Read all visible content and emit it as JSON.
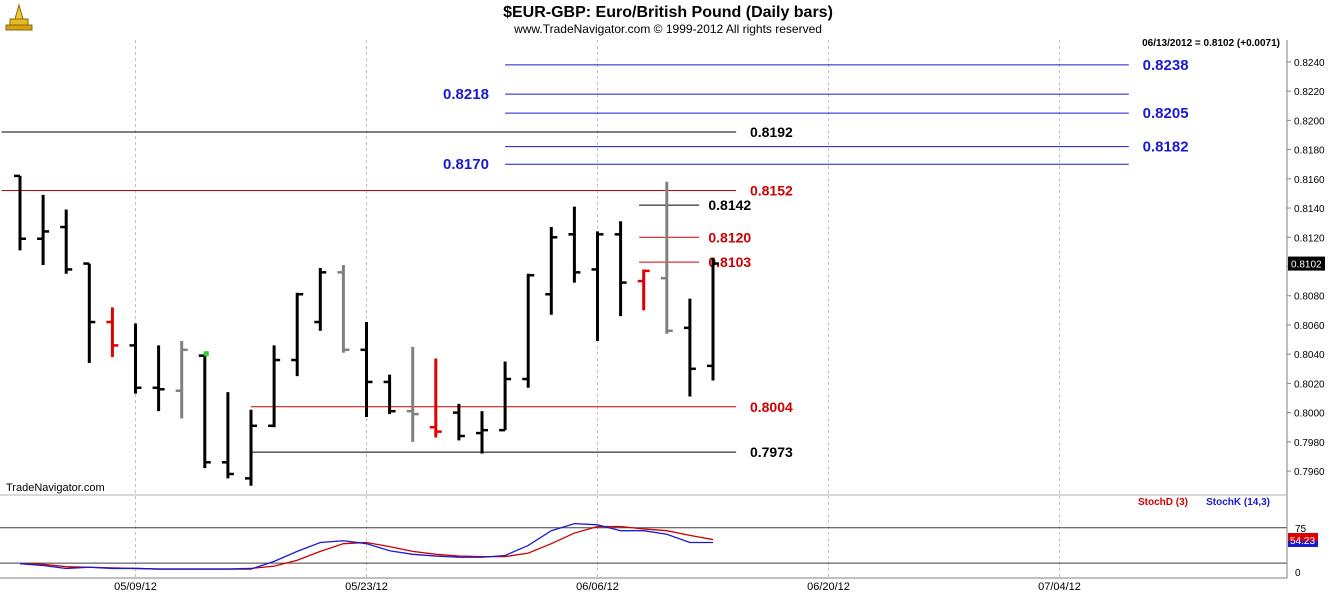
{
  "chart_data": {
    "type": "ohlc",
    "title": "$EUR-GBP:  Euro/British Pound  (Daily bars)",
    "subtitle": "www.TradeNavigator.com © 1999-2012 All rights reserved",
    "last_readout": "06/13/2012 = 0.8102 (+0.0071)",
    "watermark": "TradeNavigator.com",
    "price_axis": {
      "ylim": [
        0.7945,
        0.8255
      ],
      "ticks": [
        "0.7960",
        "0.7980",
        "0.8000",
        "0.8020",
        "0.8040",
        "0.8060",
        "0.8080",
        "0.8100",
        "0.8120",
        "0.8140",
        "0.8160",
        "0.8180",
        "0.8200",
        "0.8220",
        "0.8240"
      ],
      "last_price_label": "0.8102"
    },
    "x_axis": {
      "date_labels": [
        {
          "label": "05/09/12",
          "bar": 5
        },
        {
          "label": "05/23/12",
          "bar": 15
        },
        {
          "label": "06/06/12",
          "bar": 25
        },
        {
          "label": "06/20/12",
          "bar": 35
        },
        {
          "label": "07/04/12",
          "bar": 45
        }
      ],
      "bar_count": 55
    },
    "bars": [
      {
        "o": 0.8162,
        "h": 0.8162,
        "l": 0.8111,
        "c": 0.8119,
        "color": "black"
      },
      {
        "o": 0.8119,
        "h": 0.8149,
        "l": 0.8101,
        "c": 0.8124,
        "color": "black"
      },
      {
        "o": 0.8127,
        "h": 0.8139,
        "l": 0.8095,
        "c": 0.8098,
        "color": "black"
      },
      {
        "o": 0.8102,
        "h": 0.8102,
        "l": 0.8034,
        "c": 0.8062,
        "color": "black"
      },
      {
        "o": 0.8062,
        "h": 0.8072,
        "l": 0.8038,
        "c": 0.8046,
        "color": "red"
      },
      {
        "o": 0.8046,
        "h": 0.8061,
        "l": 0.8013,
        "c": 0.8017,
        "color": "black"
      },
      {
        "o": 0.8017,
        "h": 0.8046,
        "l": 0.8001,
        "c": 0.8016,
        "color": "black"
      },
      {
        "o": 0.8015,
        "h": 0.8049,
        "l": 0.7996,
        "c": 0.8043,
        "color": "gray"
      },
      {
        "o": 0.8039,
        "h": 0.804,
        "l": 0.7962,
        "c": 0.7966,
        "color": "black"
      },
      {
        "o": 0.7966,
        "h": 0.8014,
        "l": 0.7955,
        "c": 0.7958,
        "color": "black"
      },
      {
        "o": 0.7955,
        "h": 0.8002,
        "l": 0.795,
        "c": 0.7991,
        "color": "black"
      },
      {
        "o": 0.7991,
        "h": 0.8046,
        "l": 0.799,
        "c": 0.8036,
        "color": "black"
      },
      {
        "o": 0.8036,
        "h": 0.8082,
        "l": 0.8025,
        "c": 0.8081,
        "color": "black"
      },
      {
        "o": 0.8062,
        "h": 0.8099,
        "l": 0.8056,
        "c": 0.8096,
        "color": "black"
      },
      {
        "o": 0.8096,
        "h": 0.8101,
        "l": 0.8041,
        "c": 0.8043,
        "color": "gray"
      },
      {
        "o": 0.8043,
        "h": 0.8062,
        "l": 0.7997,
        "c": 0.8021,
        "color": "black"
      },
      {
        "o": 0.8021,
        "h": 0.8026,
        "l": 0.7999,
        "c": 0.8001,
        "color": "black"
      },
      {
        "o": 0.8001,
        "h": 0.8045,
        "l": 0.798,
        "c": 0.7999,
        "color": "gray"
      },
      {
        "o": 0.799,
        "h": 0.8037,
        "l": 0.7983,
        "c": 0.7987,
        "color": "red"
      },
      {
        "o": 0.8,
        "h": 0.8006,
        "l": 0.7981,
        "c": 0.7984,
        "color": "black"
      },
      {
        "o": 0.7986,
        "h": 0.8001,
        "l": 0.7972,
        "c": 0.7988,
        "color": "black"
      },
      {
        "o": 0.7988,
        "h": 0.8035,
        "l": 0.7988,
        "c": 0.8023,
        "color": "black"
      },
      {
        "o": 0.8023,
        "h": 0.8095,
        "l": 0.8017,
        "c": 0.8094,
        "color": "black"
      },
      {
        "o": 0.8081,
        "h": 0.8127,
        "l": 0.8067,
        "c": 0.812,
        "color": "black"
      },
      {
        "o": 0.8122,
        "h": 0.8141,
        "l": 0.8089,
        "c": 0.8096,
        "color": "black"
      },
      {
        "o": 0.8098,
        "h": 0.8124,
        "l": 0.8049,
        "c": 0.8122,
        "color": "black"
      },
      {
        "o": 0.8122,
        "h": 0.8131,
        "l": 0.8066,
        "c": 0.8089,
        "color": "black"
      },
      {
        "o": 0.809,
        "h": 0.8098,
        "l": 0.807,
        "c": 0.8097,
        "color": "red"
      },
      {
        "o": 0.8092,
        "h": 0.8158,
        "l": 0.8054,
        "c": 0.8056,
        "color": "gray"
      },
      {
        "o": 0.8058,
        "h": 0.8078,
        "l": 0.8011,
        "c": 0.803,
        "color": "black"
      },
      {
        "o": 0.8032,
        "h": 0.8106,
        "l": 0.8022,
        "c": 0.8102,
        "color": "black"
      }
    ],
    "signal_bar": {
      "bar": 8,
      "price": 0.804,
      "color": "#33cc33"
    },
    "levels": [
      {
        "label": "0.8238",
        "price": 0.8238,
        "color": "#1a1ad0",
        "from_bar": 21,
        "to_bar": 48,
        "label_bar": 48.6
      },
      {
        "label": "0.8218",
        "price": 0.8218,
        "color": "#1a1ad0",
        "from_bar": 21,
        "to_bar": 48,
        "label_side": "left",
        "label_bar": 20.3
      },
      {
        "label": "0.8205",
        "price": 0.8205,
        "color": "#1a1ad0",
        "from_bar": 21,
        "to_bar": 48,
        "label_bar": 48.6
      },
      {
        "label": "0.8192",
        "price": 0.8192,
        "color": "#000000",
        "from_bar": -0.8,
        "to_bar": 31,
        "label_bar": 31.6
      },
      {
        "label": "0.8182",
        "price": 0.8182,
        "color": "#1a1ad0",
        "from_bar": 21,
        "to_bar": 48,
        "label_bar": 48.6
      },
      {
        "label": "0.8170",
        "price": 0.817,
        "color": "#1a1ad0",
        "from_bar": 21,
        "to_bar": 48,
        "label_side": "left",
        "label_bar": 20.3
      },
      {
        "label": "0.8152",
        "price": 0.8152,
        "color": "#cc0000",
        "from_bar": -0.8,
        "to_bar": 31,
        "label_bar": 31.6
      },
      {
        "label": "0.8142",
        "price": 0.8142,
        "color": "#000000",
        "from_bar": 26.8,
        "to_bar": 29.4,
        "label_bar": 29.8
      },
      {
        "label": "0.8120",
        "price": 0.812,
        "color": "#cc0000",
        "from_bar": 26.8,
        "to_bar": 29.4,
        "label_bar": 29.8
      },
      {
        "label": "0.8103",
        "price": 0.8103,
        "color": "#cc0000",
        "from_bar": 26.8,
        "to_bar": 29.4,
        "label_bar": 29.8
      },
      {
        "label": "0.8004",
        "price": 0.8004,
        "color": "#cc0000",
        "from_bar": 10,
        "to_bar": 31,
        "label_bar": 31.6
      },
      {
        "label": "0.7973",
        "price": 0.7973,
        "color": "#000000",
        "from_bar": 10,
        "to_bar": 31,
        "label_bar": 31.6
      }
    ],
    "stochastic": {
      "legend": [
        {
          "label": "StochD (3)",
          "color": "#cc0000"
        },
        {
          "label": "StochK (14,3)",
          "color": "#1a1ad0"
        }
      ],
      "ylim": [
        0,
        100
      ],
      "ticks": [
        "75",
        "0"
      ],
      "reference_lines": [
        75,
        15
      ],
      "last_value_label": "54.23",
      "k": [
        14,
        11,
        6,
        8,
        6,
        6,
        5,
        5,
        5,
        5,
        5,
        18,
        35,
        50,
        53,
        48,
        36,
        30,
        27,
        25,
        25,
        28,
        45,
        70,
        82,
        80,
        70,
        70,
        64,
        50,
        50
      ],
      "d": [
        14,
        13,
        9,
        8,
        7,
        6,
        5,
        5,
        5,
        5,
        6,
        10,
        20,
        35,
        48,
        50,
        43,
        35,
        30,
        27,
        26,
        26,
        32,
        48,
        66,
        77,
        77,
        73,
        70,
        62,
        55
      ]
    }
  }
}
